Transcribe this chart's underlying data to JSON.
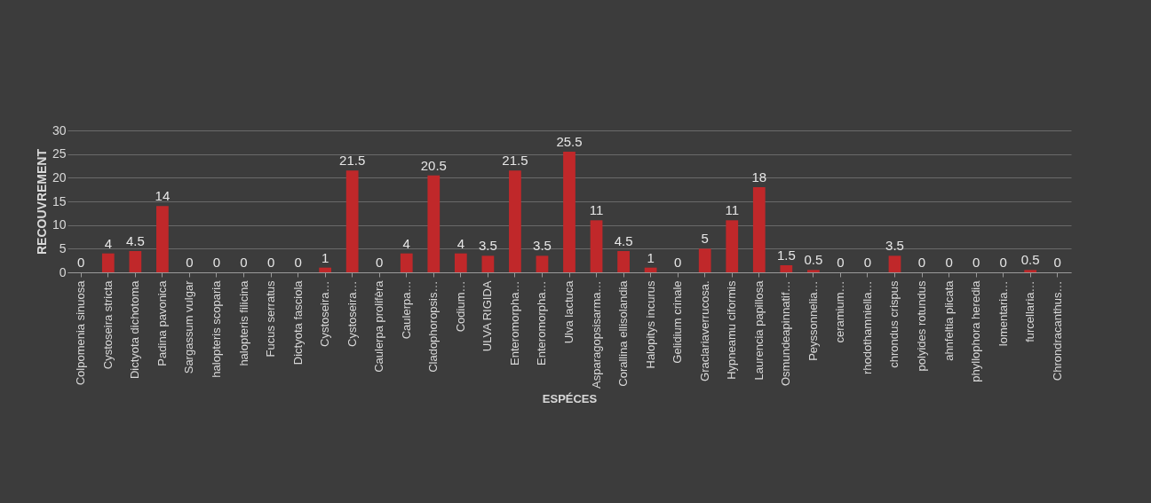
{
  "chart_data": {
    "type": "bar",
    "xlabel": "ESPÉCES",
    "ylabel": "RECOUVREMENT",
    "categories": [
      "Colpomenia sinuosa",
      "Cystoseira stricta",
      "Dictyota dichotoma",
      "Padina pavonica",
      "Sargassum vulgar",
      "halopteris scoparia",
      "halopteris filicina",
      "Fucus serratus",
      "Dictyota fasciola",
      "Cystoseira…",
      "Cystoseira…",
      "Caulerpa prolifèra",
      "Caulerpa…",
      "Cladophoropsis…",
      "Codium…",
      "ULVA RIGIDA",
      "Enteromorpha…",
      "Enteromorpha…",
      "Ulva lactuca",
      "Asparagopsisarma…",
      "Corallina ellisolandia",
      "Halopitys incurus",
      "Gelidium crinale",
      "Graclariaverrucosa.",
      "Hypneamu ciformis",
      "Laurencia papillosa",
      "Osmundeapinnatif…",
      "Peyssonnelia…",
      "ceramium…",
      "rhodothamniella…",
      "chrondus crispus",
      "polyides rotundus",
      "ahnfeltia plicata",
      "phyllophora heredia",
      "lomentaria…",
      "furcellaria…",
      "Chrondracanthus…"
    ],
    "values": [
      0,
      4,
      4.5,
      14,
      0,
      0,
      0,
      0,
      0,
      1,
      21.5,
      0,
      4,
      20.5,
      4,
      3.5,
      21.5,
      3.5,
      25.5,
      11,
      4.5,
      1,
      0,
      5,
      11,
      18,
      1.5,
      0.5,
      0,
      0,
      3.5,
      0,
      0,
      0,
      0,
      0.5,
      0
    ],
    "color": "#c0282a",
    "ylim": [
      0,
      30
    ],
    "yticks": [
      0,
      5,
      10,
      15,
      20,
      25,
      30
    ],
    "grid": "y",
    "data_labels": true
  }
}
